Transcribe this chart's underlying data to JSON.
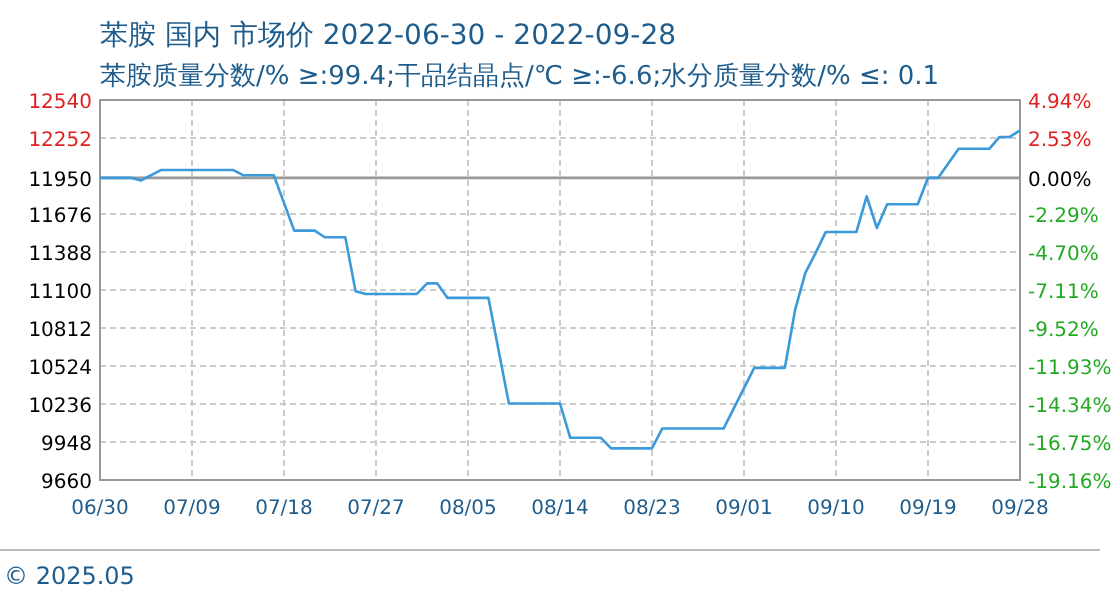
{
  "chart_data": {
    "type": "line",
    "title": "苯胺 国内 市场价 2022-06-30 - 2022-09-28",
    "subtitle": "苯胺质量分数/% ≥:99.4;干品结晶点/℃  ≥:-6.6;水分质量分数/%  ≤: 0.1",
    "annotations": [
      "© 2025.05"
    ],
    "x": [
      "2022-06-30",
      "2022-07-03",
      "2022-07-04",
      "2022-07-06",
      "2022-07-13",
      "2022-07-14",
      "2022-07-17",
      "2022-07-19",
      "2022-07-21",
      "2022-07-22",
      "2022-07-24",
      "2022-07-25",
      "2022-07-26",
      "2022-07-31",
      "2022-08-01",
      "2022-08-02",
      "2022-08-03",
      "2022-08-07",
      "2022-08-09",
      "2022-08-14",
      "2022-08-15",
      "2022-08-18",
      "2022-08-19",
      "2022-08-23",
      "2022-08-24",
      "2022-08-30",
      "2022-09-02",
      "2022-09-05",
      "2022-09-06",
      "2022-09-07",
      "2022-09-08",
      "2022-09-09",
      "2022-09-12",
      "2022-09-13",
      "2022-09-14",
      "2022-09-15",
      "2022-09-18",
      "2022-09-19",
      "2022-09-20",
      "2022-09-22",
      "2022-09-25",
      "2022-09-26",
      "2022-09-27",
      "2022-09-28"
    ],
    "series": [
      {
        "color": "#3b9ad9",
        "values": [
          11950,
          11950,
          11930,
          12010,
          12010,
          11970,
          11970,
          11550,
          11550,
          11500,
          11500,
          11090,
          11070,
          11070,
          11150,
          11150,
          11040,
          11040,
          10240,
          10240,
          9980,
          9980,
          9900,
          9900,
          10050,
          10050,
          10510,
          10510,
          10950,
          11230,
          11380,
          11540,
          11540,
          11810,
          11570,
          11750,
          11750,
          11950,
          11950,
          12170,
          12170,
          12260,
          12260,
          12310
        ]
      }
    ],
    "xlim": [
      "2022-06-30",
      "2022-09-28"
    ],
    "xticks": [
      {
        "value": "2022-06-30",
        "label": "06/30"
      },
      {
        "value": "2022-07-09",
        "label": "07/09"
      },
      {
        "value": "2022-07-18",
        "label": "07/18"
      },
      {
        "value": "2022-07-27",
        "label": "07/27"
      },
      {
        "value": "2022-08-05",
        "label": "08/05"
      },
      {
        "value": "2022-08-14",
        "label": "08/14"
      },
      {
        "value": "2022-08-23",
        "label": "08/23"
      },
      {
        "value": "2022-09-01",
        "label": "09/01"
      },
      {
        "value": "2022-09-10",
        "label": "09/10"
      },
      {
        "value": "2022-09-19",
        "label": "09/19"
      },
      {
        "value": "2022-09-28",
        "label": "09/28"
      }
    ],
    "ylim": [
      9660,
      12540
    ],
    "yticks": [
      9660,
      9948,
      10236,
      10524,
      10812,
      11100,
      11388,
      11676,
      11950,
      12252,
      12540
    ],
    "y2lim": [
      -19.16,
      4.94
    ],
    "y2ticks": [
      {
        "value": -19.16,
        "label": "-19.16%"
      },
      {
        "value": -16.75,
        "label": "-16.75%"
      },
      {
        "value": -14.34,
        "label": "-14.34%"
      },
      {
        "value": -11.93,
        "label": "-11.93%"
      },
      {
        "value": -9.52,
        "label": "-9.52%"
      },
      {
        "value": -7.11,
        "label": "-7.11%"
      },
      {
        "value": -4.7,
        "label": "-4.70%"
      },
      {
        "value": -2.29,
        "label": "-2.29%"
      },
      {
        "value": 0,
        "label": "0.00%"
      },
      {
        "value": 2.53,
        "label": "2.53%"
      },
      {
        "value": 4.94,
        "label": "4.94%"
      }
    ],
    "ref_lines": [
      {
        "axis": "y",
        "value": 11950,
        "color": "#999999"
      }
    ],
    "grid": true,
    "marker": "none",
    "line_style": "solid"
  }
}
